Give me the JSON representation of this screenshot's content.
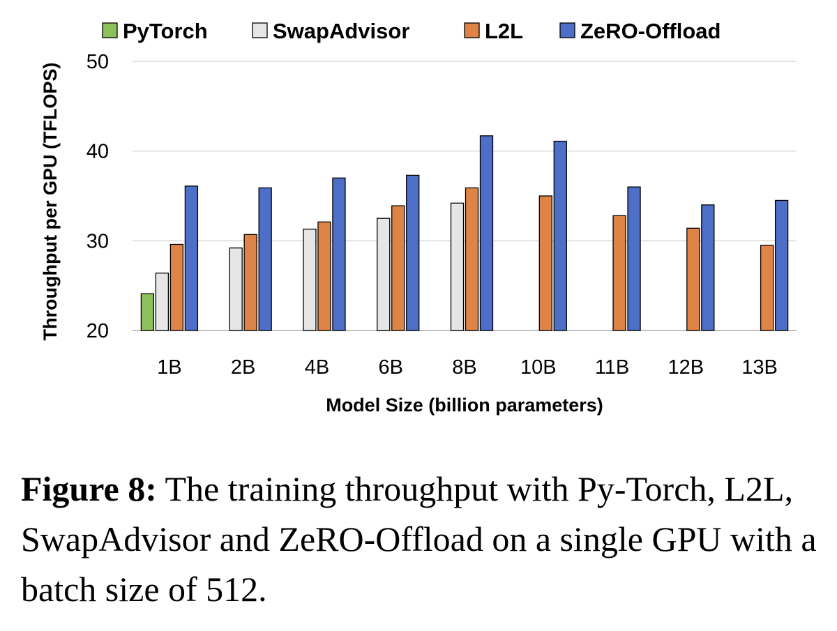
{
  "chart_data": {
    "type": "bar",
    "xlabel": "Model Size (billion parameters)",
    "ylabel": "Throughput per GPU (TFLOPS)",
    "ylim": [
      20,
      50
    ],
    "yticks": [
      20,
      30,
      40,
      50
    ],
    "grid": true,
    "legend_position": "top",
    "categories": [
      "1B",
      "2B",
      "4B",
      "6B",
      "8B",
      "10B",
      "11B",
      "12B",
      "13B"
    ],
    "series": [
      {
        "name": "PyTorch",
        "color": "#8cc15a",
        "values": [
          24.1,
          null,
          null,
          null,
          null,
          null,
          null,
          null,
          null
        ]
      },
      {
        "name": "SwapAdvisor",
        "color": "#e6e6e6",
        "values": [
          26.4,
          29.2,
          31.3,
          32.5,
          34.2,
          null,
          null,
          null,
          null
        ]
      },
      {
        "name": "L2L",
        "color": "#de8447",
        "values": [
          29.6,
          30.7,
          32.1,
          33.9,
          35.9,
          35.0,
          32.8,
          31.4,
          29.5
        ]
      },
      {
        "name": "ZeRO-Offload",
        "color": "#4e6fc7",
        "values": [
          36.1,
          35.9,
          37.0,
          37.3,
          41.7,
          41.1,
          36.0,
          34.0,
          34.5
        ]
      }
    ]
  },
  "caption": {
    "label": "Figure 8:",
    "text": " The training throughput with Py-Torch, L2L, SwapAdvisor and ZeRO-Offload on a single GPU with a batch size of 512."
  }
}
